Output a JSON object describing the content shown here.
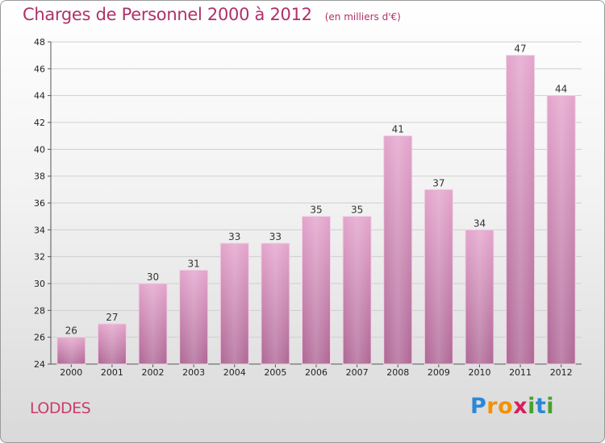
{
  "header": {
    "title": "Charges de Personnel 2000 à 2012",
    "subtitle": "(en milliers d'€)"
  },
  "footer": {
    "city": "LODDES",
    "logo_letters": [
      "P",
      "r",
      "o",
      "x",
      "i",
      "t",
      "i"
    ]
  },
  "colors": {
    "title": "#b0306a",
    "bar_top": "#e4a6cd",
    "bar_bottom": "#b06a97",
    "grid": "#cfcfcf"
  },
  "chart_data": {
    "type": "bar",
    "categories": [
      "2000",
      "2001",
      "2002",
      "2003",
      "2004",
      "2005",
      "2006",
      "2007",
      "2008",
      "2009",
      "2010",
      "2011",
      "2012"
    ],
    "values": [
      26,
      27,
      30,
      31,
      33,
      33,
      35,
      35,
      41,
      37,
      34,
      47,
      44
    ],
    "title": "Charges de Personnel 2000 à 2012",
    "subtitle": "(en milliers d'€)",
    "xlabel": "",
    "ylabel": "",
    "ylim": [
      24,
      48
    ],
    "yticks": [
      24,
      26,
      28,
      30,
      32,
      34,
      36,
      38,
      40,
      42,
      44,
      46,
      48
    ],
    "grid": true,
    "legend": "none"
  }
}
